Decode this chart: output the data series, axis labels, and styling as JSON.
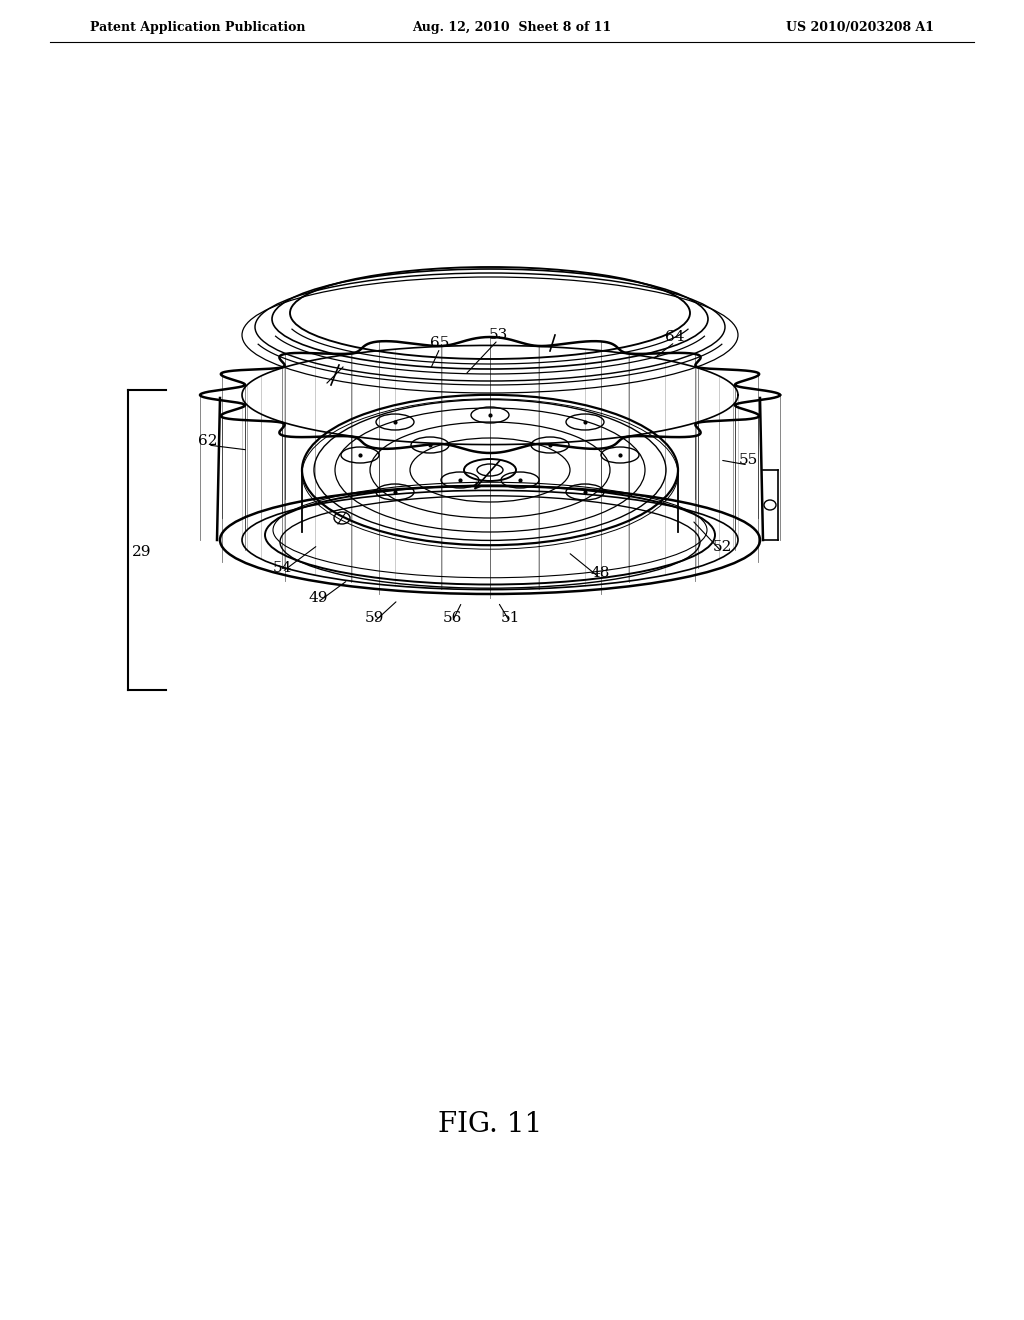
{
  "header_left": "Patent Application Publication",
  "header_mid": "Aug. 12, 2010  Sheet 8 of 11",
  "header_right": "US 2010/0203208 A1",
  "figure_label": "FIG. 11",
  "bg": "#ffffff",
  "lc": "#000000"
}
